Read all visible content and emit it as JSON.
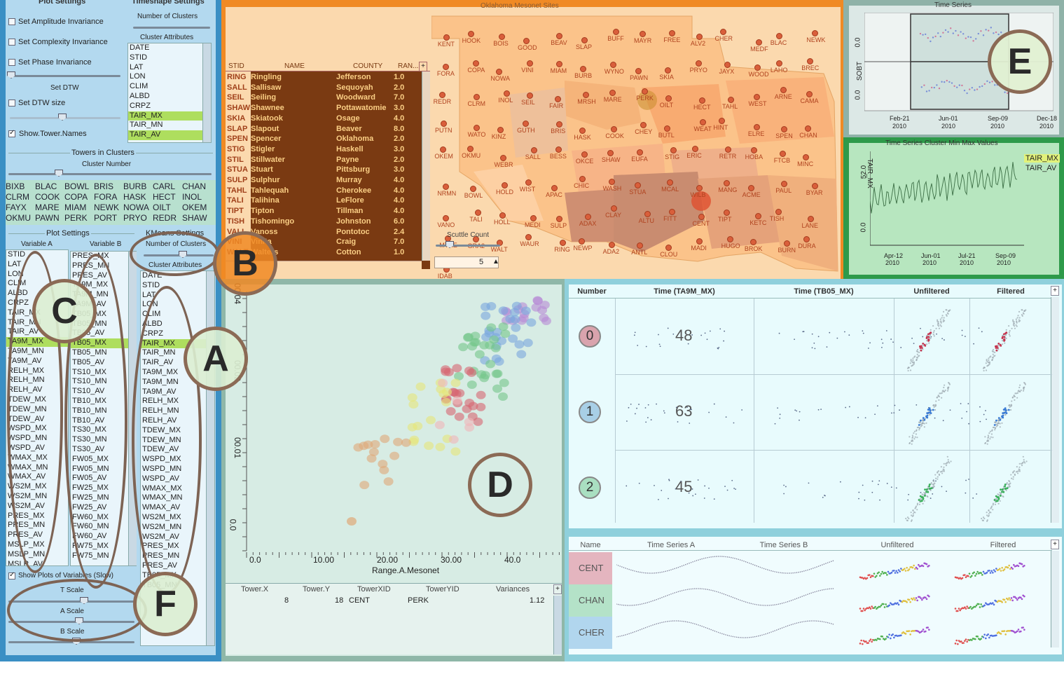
{
  "left_panel": {
    "plot_settings_title": "Plot Settings",
    "timeshape_title": "Timeshape Settings",
    "checkboxes": [
      {
        "label": "Set Amplitude Invariance",
        "checked": false
      },
      {
        "label": "Set Complexity Invariance",
        "checked": false
      },
      {
        "label": "Set Phase Invariance",
        "checked": false
      },
      {
        "label": "Set DTW size",
        "checked": false
      },
      {
        "label": "Show.Tower.Names",
        "checked": true
      }
    ],
    "set_dtw_label": "Set DTW",
    "number_of_clusters_label": "Number of Clusters",
    "cluster_attributes_label": "Cluster Attributes",
    "cluster_attributes": [
      "DATE",
      "STID",
      "LAT",
      "LON",
      "CLIM",
      "ALBD",
      "CRPZ",
      "TAIR_MX",
      "TAIR_MN",
      "TAIR_AV"
    ],
    "cluster_attributes_selected": [
      "TAIR_MX",
      "TAIR_AV"
    ],
    "towers_in_clusters_title": "Towers in Clusters",
    "cluster_number_label": "Cluster Number",
    "tower_rows": [
      [
        "BIXB",
        "BLAC",
        "BOWL",
        "BRIS",
        "BURB",
        "CARL",
        "CHAN"
      ],
      [
        "CLRM",
        "COOK",
        "COPA",
        "FORA",
        "HASK",
        "HECT",
        "INOL"
      ],
      [
        "FAYX",
        "MARE",
        "MIAM",
        "NEWK",
        "NOWA",
        "OILT",
        "OKEM"
      ],
      [
        "OKMU",
        "PAWN",
        "PERK",
        "PORT",
        "PRYO",
        "REDR",
        "SHAW"
      ]
    ],
    "plot_settings_sub": "Plot Settings",
    "variable_a_label": "Variable A",
    "variable_b_label": "Variable B",
    "kmeans_title": "KMeans Settings",
    "kmeans_clusters_label": "Number of Clusters",
    "kmeans_attributes_label": "Cluster Attributes",
    "var_a_list": [
      "STID",
      "LAT",
      "LON",
      "CLIM",
      "ALBD",
      "CRPZ",
      "TAIR_MX",
      "TAIR_MN",
      "TAIR_AV",
      "TA9M_MX",
      "TA9M_MN",
      "TA9M_AV",
      "RELH_MX",
      "RELH_MN",
      "RELH_AV",
      "TDEW_MX",
      "TDEW_MN",
      "TDEW_AV",
      "WSPD_MX",
      "WSPD_MN",
      "WSPD_AV",
      "WMAX_MX",
      "WMAX_MN",
      "WMAX_AV",
      "WS2M_MX",
      "WS2M_MN",
      "WS2M_AV",
      "PRES_MX",
      "PRES_MN",
      "PRES_AV",
      "MSLP_MX",
      "MSLP_MN",
      "MSLP_AV"
    ],
    "var_a_selected": "TA9M_MX",
    "var_b_list": [
      "PRES_MX",
      "PRES_MN",
      "PRES_AV",
      "TA9M_MX",
      "TA9M_MN",
      "TA9M_AV",
      "TB05_MX",
      "TB05_MN",
      "TB05_AV",
      "TB05_MX",
      "TB05_MN",
      "TB05_AV",
      "TS10_MX",
      "TS10_MN",
      "TS10_AV",
      "TB10_MX",
      "TB10_MN",
      "TB10_AV",
      "TS30_MX",
      "TS30_MN",
      "TS30_AV",
      "FW05_MX",
      "FW05_MN",
      "FW05_AV",
      "FW25_MX",
      "FW25_MN",
      "FW25_AV",
      "FW60_MX",
      "FW60_MN",
      "FW60_AV",
      "FW75_MX",
      "FW75_MN"
    ],
    "var_b_selected_index": 9,
    "kmeans_list": [
      "DATE",
      "STID",
      "LAT",
      "LON",
      "CLIM",
      "ALBD",
      "CRPZ",
      "TAIR_MX",
      "TAIR_MN",
      "TAIR_AV",
      "TA9M_MX",
      "TA9M_MN",
      "TA9M_AV",
      "RELH_MX",
      "RELH_MN",
      "RELH_AV",
      "TDEW_MX",
      "TDEW_MN",
      "TDEW_AV",
      "WSPD_MX",
      "WSPD_MN",
      "WSPD_AV",
      "WMAX_MX",
      "WMAX_MN",
      "WMAX_AV",
      "WS2M_MX",
      "WS2M_MN",
      "WS2M_AV",
      "PRES_MX",
      "PRES_MN",
      "PRES_AV",
      "TB05_MX",
      "TB05_MN"
    ],
    "kmeans_selected": "TAIR_MX",
    "show_plots_label": "Show Plots of Variables (Slow)",
    "t_scale_label": "T Scale",
    "a_scale_label": "A Scale",
    "b_scale_label": "B Scale"
  },
  "map_panel": {
    "title": "Oklahoma Mesonet Sites",
    "table_headers": [
      "STID",
      "NAME",
      "COUNTY",
      "RAN..."
    ],
    "table_rows": [
      [
        "RING",
        "Ringling",
        "Jefferson",
        "1.0"
      ],
      [
        "SALL",
        "Sallisaw",
        "Sequoyah",
        "2.0"
      ],
      [
        "SEIL",
        "Seiling",
        "Woodward",
        "7.0"
      ],
      [
        "SHAW",
        "Shawnee",
        "Pottawatomie",
        "3.0"
      ],
      [
        "SKIA",
        "Skiatook",
        "Osage",
        "4.0"
      ],
      [
        "SLAP",
        "Slapout",
        "Beaver",
        "8.0"
      ],
      [
        "SPEN",
        "Spencer",
        "Oklahoma",
        "2.0"
      ],
      [
        "STIG",
        "Stigler",
        "Haskell",
        "3.0"
      ],
      [
        "STIL",
        "Stillwater",
        "Payne",
        "2.0"
      ],
      [
        "STUA",
        "Stuart",
        "Pittsburg",
        "3.0"
      ],
      [
        "SULP",
        "Sulphur",
        "Murray",
        "4.0"
      ],
      [
        "TAHL",
        "Tahlequah",
        "Cherokee",
        "4.0"
      ],
      [
        "TALI",
        "Talihina",
        "LeFlore",
        "4.0"
      ],
      [
        "TIPT",
        "Tipton",
        "Tillman",
        "4.0"
      ],
      [
        "TISH",
        "Tishomingo",
        "Johnston",
        "6.0"
      ],
      [
        "VALI",
        "Vanoss",
        "Pontotoc",
        "2.4"
      ],
      [
        "VINI",
        "Vinita",
        "Craig",
        "7.0"
      ],
      [
        "WALT",
        "Walters",
        "Cotton",
        "1.0"
      ]
    ],
    "scuttle_count_label": "Scuttle Count",
    "scuttle_value": "5",
    "stations": [
      "KENT",
      "HOOK",
      "BOIS",
      "GOOD",
      "BEAV",
      "SLAP",
      "BUFF",
      "MAYR",
      "FREE",
      "ALV2",
      "CHER",
      "MEDF",
      "BLAC",
      "NEWK",
      "FORA",
      "COPA",
      "NOWA",
      "VINI",
      "MIAM",
      "BURB",
      "WYNO",
      "PAWN",
      "SKIA",
      "PRYO",
      "JAYX",
      "WOOD",
      "LAHO",
      "BREC",
      "REDR",
      "CLRM",
      "INOL",
      "SEIL",
      "FAIR",
      "MRSH",
      "MARE",
      "PERK",
      "OILT",
      "HECT",
      "TAHL",
      "WEST",
      "ARNE",
      "CAMA",
      "PUTN",
      "WATO",
      "KINZ",
      "GUTH",
      "BRIS",
      "HASK",
      "COOK",
      "CHEY",
      "BUTL",
      "WEAT",
      "HINT",
      "ELRE",
      "SPEN",
      "CHAN",
      "OKEM",
      "OKMU",
      "WEBR",
      "SALL",
      "BESS",
      "OKCE",
      "SHAW",
      "EUFA",
      "STIG",
      "ERIC",
      "RETR",
      "HOBA",
      "FTCB",
      "MINC",
      "NRMN",
      "BOWL",
      "HOLD",
      "WIST",
      "APAC",
      "CHIC",
      "WASH",
      "STUA",
      "MCAL",
      "WILB",
      "MANG",
      "ACME",
      "PAUL",
      "BYAR",
      "VANO",
      "TALI",
      "HOLL",
      "MEDI",
      "SULP",
      "ADAX",
      "CLAY",
      "ALTU",
      "FITT",
      "CENT",
      "TIPT",
      "KETC",
      "TISH",
      "LANE",
      "MTHE",
      "GRA2",
      "WALT",
      "WAUR",
      "RING",
      "NEWP",
      "ADA2",
      "ANTL",
      "CLOU",
      "MADI",
      "HUGO",
      "BROK",
      "BURN",
      "DURA",
      "IDAB"
    ]
  },
  "time_series_panel": {
    "title": "Time Series",
    "x_ticks": [
      "Feb-21",
      "Jun-01",
      "Sep-09",
      "Dec-18"
    ],
    "year": "2010",
    "y_tick": "0.0",
    "y_label": "SOBT"
  },
  "minmax_panel": {
    "title": "Time Series Cluster Min Max Values",
    "legend": [
      "TAIR_MX",
      "TAIR_AV"
    ],
    "x_ticks": [
      "Apr-12",
      "Jun-01",
      "Jul-21",
      "Sep-09"
    ],
    "year": "2010",
    "y_ticks": [
      "0.0",
      "52.0"
    ],
    "y_label": "TAIR_MX"
  },
  "scatter_panel": {
    "x_label": "Range.A.Mesonet",
    "x_ticks": [
      "0.0",
      "10.00",
      "20.00",
      "30.00",
      "40.0"
    ],
    "y_ticks": [
      "0.0",
      "00.01",
      "00.02",
      "00.04"
    ],
    "table_headers": [
      "Tower.X",
      "Tower.Y",
      "TowerXID",
      "TowerYID",
      "Variances"
    ],
    "table_row": [
      "8",
      "18",
      "CENT",
      "PERK",
      "1.12"
    ]
  },
  "cluster_grid": {
    "headers": [
      "Number",
      "Time (TA9M_MX)",
      "Time (TB05_MX)",
      "Unfiltered",
      "Filtered"
    ],
    "rows": [
      {
        "number": "0",
        "count": "48",
        "color": "#d9a3ad"
      },
      {
        "number": "1",
        "count": "63",
        "color": "#a8cfe6"
      },
      {
        "number": "2",
        "count": "45",
        "color": "#a9dfc1"
      }
    ]
  },
  "name_grid": {
    "headers": [
      "Name",
      "Time Series A",
      "Time Series B",
      "Unfiltered",
      "Filtered"
    ],
    "rows": [
      {
        "name": "CENT",
        "color": "#e4b5bf"
      },
      {
        "name": "CHAN",
        "color": "#b4e2c8"
      },
      {
        "name": "CHER",
        "color": "#b1d6ee"
      }
    ]
  },
  "callouts": [
    "A",
    "B",
    "C",
    "D",
    "E",
    "F"
  ],
  "colors": {
    "left_border": "#3a8fc4",
    "map_border": "#f08a24",
    "scatter_border": "#8fb7a8",
    "grid_border": "#8fd0dc",
    "ts_border": "#8fb2a8",
    "minmax_border": "#2e9a4a"
  }
}
